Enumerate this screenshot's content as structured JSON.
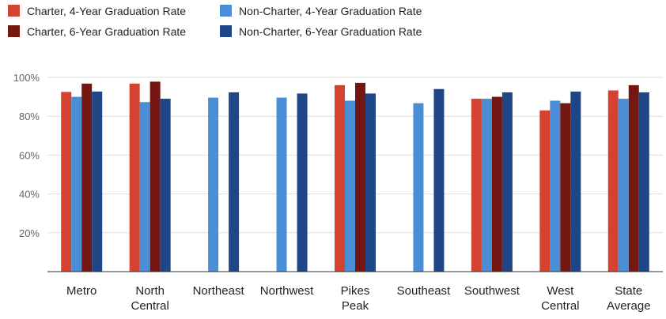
{
  "chart_data": {
    "type": "bar",
    "title": "",
    "xlabel": "",
    "ylabel": "",
    "ylim": [
      0,
      100
    ],
    "y_ticks": [
      20,
      40,
      60,
      80,
      100
    ],
    "y_tick_suffix": "%",
    "grid": true,
    "legend_position": "top-left",
    "categories": [
      [
        "Metro"
      ],
      [
        "North",
        "Central"
      ],
      [
        "Northeast"
      ],
      [
        "Northwest"
      ],
      [
        "Pikes",
        "Peak"
      ],
      [
        "Southeast"
      ],
      [
        "Southwest"
      ],
      [
        "West",
        "Central"
      ],
      [
        "State",
        "Average"
      ]
    ],
    "series": [
      {
        "name": "Charter, 4-Year Graduation Rate",
        "color": "#d44230",
        "values": [
          92.5,
          96.8,
          null,
          null,
          96.0,
          null,
          89.0,
          83.0,
          93.3
        ]
      },
      {
        "name": "Non-Charter, 4-Year Graduation Rate",
        "color": "#4a8fd6",
        "values": [
          90.0,
          87.3,
          89.6,
          89.6,
          88.0,
          86.7,
          89.0,
          88.0,
          89.0
        ]
      },
      {
        "name": "Charter, 6-Year Graduation Rate",
        "color": "#731713",
        "values": [
          96.8,
          97.8,
          null,
          null,
          97.2,
          null,
          90.0,
          86.7,
          96.0
        ]
      },
      {
        "name": "Non-Charter, 6-Year Graduation Rate",
        "color": "#1f4686",
        "values": [
          92.7,
          89.0,
          92.3,
          91.7,
          91.7,
          94.0,
          92.3,
          92.7,
          92.3
        ]
      }
    ],
    "legend_order": [
      0,
      2,
      1,
      3
    ]
  }
}
